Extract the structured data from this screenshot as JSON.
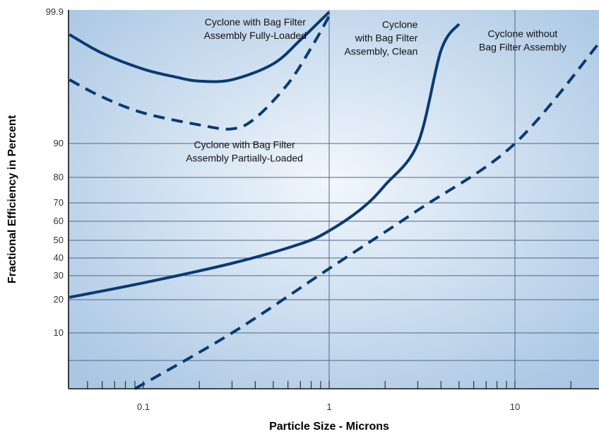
{
  "chart_data": {
    "type": "line",
    "title": "",
    "xlabel": "Particle Size - Microns",
    "ylabel": "Fractional Efficiency in Percent",
    "x_scale": "log",
    "y_scale": "probability",
    "xlim": [
      0.04,
      30
    ],
    "x_ticks": [
      {
        "value": 0.1,
        "label": "0.1"
      },
      {
        "value": 1,
        "label": "1"
      },
      {
        "value": 10,
        "label": "10"
      }
    ],
    "y_ticks": [
      {
        "value": 10,
        "label": "10"
      },
      {
        "value": 20,
        "label": "20"
      },
      {
        "value": 30,
        "label": "30"
      },
      {
        "value": 40,
        "label": "40"
      },
      {
        "value": 50,
        "label": "50"
      },
      {
        "value": 60,
        "label": "60"
      },
      {
        "value": 70,
        "label": "70"
      },
      {
        "value": 80,
        "label": "80"
      },
      {
        "value": 90,
        "label": "90"
      },
      {
        "value": 99.9,
        "label": "99.9"
      }
    ],
    "grid": true,
    "legend": "none",
    "colors": {
      "line": "#0a3a72",
      "grid": "#4a6a8a",
      "background_edge": "#a9c6e3",
      "background_center": "#f2f7fc"
    },
    "series": [
      {
        "style": "dashed",
        "points": [
          [
            0.09,
            2
          ],
          [
            0.3,
            10
          ],
          [
            1,
            34
          ],
          [
            3,
            66
          ],
          [
            10,
            90
          ],
          [
            30,
            98
          ]
        ]
      },
      {
        "style": "solid",
        "points": [
          [
            0.04,
            21
          ],
          [
            0.1,
            27
          ],
          [
            0.3,
            37
          ],
          [
            0.7,
            48
          ],
          [
            1,
            55
          ],
          [
            1.5,
            67
          ],
          [
            2,
            77
          ],
          [
            3,
            90
          ],
          [
            4,
            97
          ],
          [
            5,
            99
          ]
        ]
      },
      {
        "style": "solid",
        "points": [
          [
            0.04,
            98.2
          ],
          [
            0.06,
            96.8
          ],
          [
            0.1,
            95.6
          ],
          [
            0.15,
            95.0
          ],
          [
            0.2,
            94.7
          ],
          [
            0.3,
            94.8
          ],
          [
            0.5,
            96.0
          ],
          [
            0.7,
            97.8
          ],
          [
            1,
            99.9
          ]
        ]
      },
      {
        "style": "dashed",
        "points": [
          [
            0.04,
            94.8
          ],
          [
            0.06,
            93.5
          ],
          [
            0.1,
            92.3
          ],
          [
            0.2,
            91.4
          ],
          [
            0.3,
            91.1
          ],
          [
            0.4,
            91.9
          ],
          [
            0.6,
            94.5
          ],
          [
            0.8,
            97.2
          ],
          [
            1,
            99.6
          ]
        ]
      }
    ],
    "annotations": [
      {
        "lines": [
          "Cyclone with Bag Filter",
          "Assembly Fully-Loaded"
        ],
        "x": 0.4,
        "y": 98.9,
        "anchor": "middle"
      },
      {
        "lines": [
          "Cyclone with Bag Filter",
          "Assembly Partially-Loaded"
        ],
        "x": 0.35,
        "y": 88.6,
        "anchor": "middle"
      },
      {
        "lines": [
          "Cyclone",
          "with Bag Filter",
          "Assembly, Clean"
        ],
        "x": 3.0,
        "y": 98.7,
        "anchor": "end"
      },
      {
        "lines": [
          "Cyclone without",
          "Bag Filter Assembly"
        ],
        "x": 11,
        "y": 98.0,
        "anchor": "middle"
      }
    ]
  }
}
